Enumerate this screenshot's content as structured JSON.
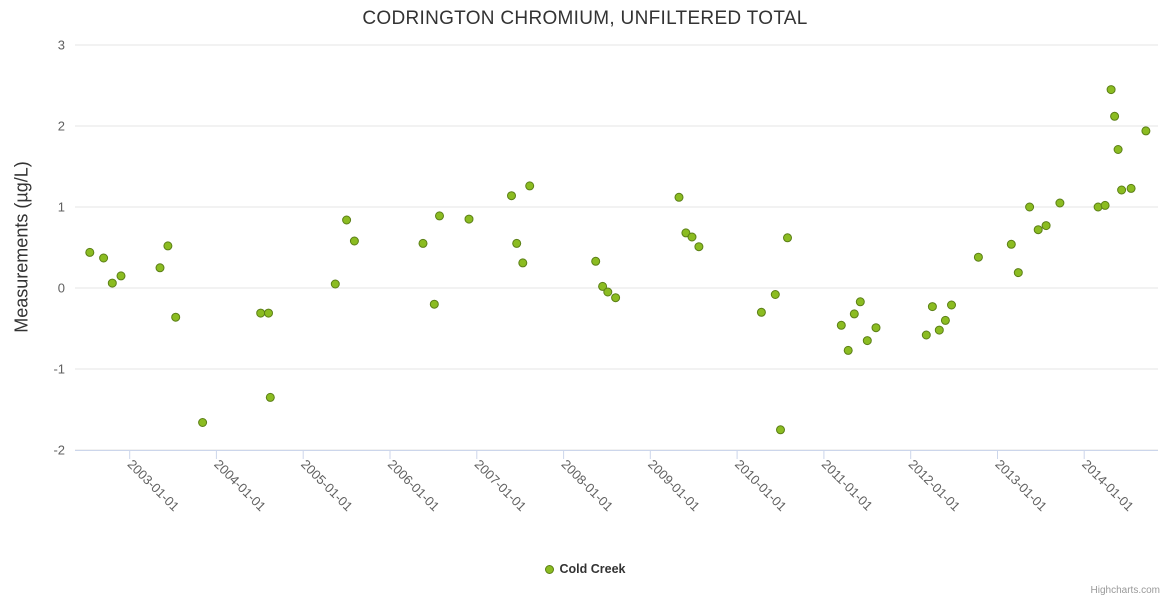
{
  "credits": "Highcharts.com",
  "chart_data": {
    "type": "scatter",
    "title": "CODRINGTON CHROMIUM, UNFILTERED TOTAL",
    "xlabel": "",
    "ylabel": "Measurements (µg/L)",
    "xlim": [
      2002.37,
      2014.85
    ],
    "ylim": [
      -2,
      3
    ],
    "y_ticks": [
      -2,
      -1,
      0,
      1,
      2,
      3
    ],
    "x_tick_values": [
      2003,
      2004,
      2005,
      2006,
      2007,
      2008,
      2009,
      2010,
      2011,
      2012,
      2013,
      2014
    ],
    "x_tick_labels": [
      "2003-01-01",
      "2004-01-01",
      "2005-01-01",
      "2006-01-01",
      "2007-01-01",
      "2008-01-01",
      "2009-01-01",
      "2010-01-01",
      "2011-01-01",
      "2012-01-01",
      "2013-01-01",
      "2014-01-01"
    ],
    "grid": "horizontal",
    "legend_position": "bottom-center",
    "colors": {
      "grid": "#e6e6e6",
      "axis": "#ccd6eb",
      "tick_label": "#606060",
      "title": "#333333"
    },
    "series": [
      {
        "name": "Cold Creek",
        "color": "#8bbc21",
        "marker_line_color": "#5b7f16",
        "marker_radius": 4,
        "points": [
          [
            2002.54,
            0.44
          ],
          [
            2002.7,
            0.37
          ],
          [
            2002.8,
            0.06
          ],
          [
            2002.9,
            0.15
          ],
          [
            2003.35,
            0.25
          ],
          [
            2003.44,
            0.52
          ],
          [
            2003.53,
            -0.36
          ],
          [
            2003.84,
            -1.66
          ],
          [
            2004.51,
            -0.31
          ],
          [
            2004.6,
            -0.31
          ],
          [
            2004.62,
            -1.35
          ],
          [
            2005.37,
            0.05
          ],
          [
            2005.5,
            0.84
          ],
          [
            2005.59,
            0.58
          ],
          [
            2006.38,
            0.55
          ],
          [
            2006.51,
            -0.2
          ],
          [
            2006.57,
            0.89
          ],
          [
            2006.91,
            0.85
          ],
          [
            2007.4,
            1.14
          ],
          [
            2007.46,
            0.55
          ],
          [
            2007.53,
            0.31
          ],
          [
            2007.61,
            1.26
          ],
          [
            2008.37,
            0.33
          ],
          [
            2008.45,
            0.02
          ],
          [
            2008.51,
            -0.05
          ],
          [
            2008.6,
            -0.12
          ],
          [
            2009.33,
            1.12
          ],
          [
            2009.41,
            0.68
          ],
          [
            2009.48,
            0.63
          ],
          [
            2009.56,
            0.51
          ],
          [
            2010.28,
            -0.3
          ],
          [
            2010.44,
            -0.08
          ],
          [
            2010.5,
            -1.75
          ],
          [
            2010.58,
            0.62
          ],
          [
            2011.2,
            -0.46
          ],
          [
            2011.28,
            -0.77
          ],
          [
            2011.35,
            -0.32
          ],
          [
            2011.42,
            -0.17
          ],
          [
            2011.5,
            -0.65
          ],
          [
            2011.6,
            -0.49
          ],
          [
            2012.18,
            -0.58
          ],
          [
            2012.25,
            -0.23
          ],
          [
            2012.33,
            -0.52
          ],
          [
            2012.4,
            -0.4
          ],
          [
            2012.47,
            -0.21
          ],
          [
            2012.78,
            0.38
          ],
          [
            2013.16,
            0.54
          ],
          [
            2013.24,
            0.19
          ],
          [
            2013.37,
            1.0
          ],
          [
            2013.47,
            0.72
          ],
          [
            2013.56,
            0.77
          ],
          [
            2013.72,
            1.05
          ],
          [
            2014.16,
            1.0
          ],
          [
            2014.24,
            1.02
          ],
          [
            2014.31,
            2.45
          ],
          [
            2014.35,
            2.12
          ],
          [
            2014.39,
            1.71
          ],
          [
            2014.43,
            1.21
          ],
          [
            2014.54,
            1.23
          ],
          [
            2014.71,
            1.94
          ]
        ]
      }
    ]
  }
}
